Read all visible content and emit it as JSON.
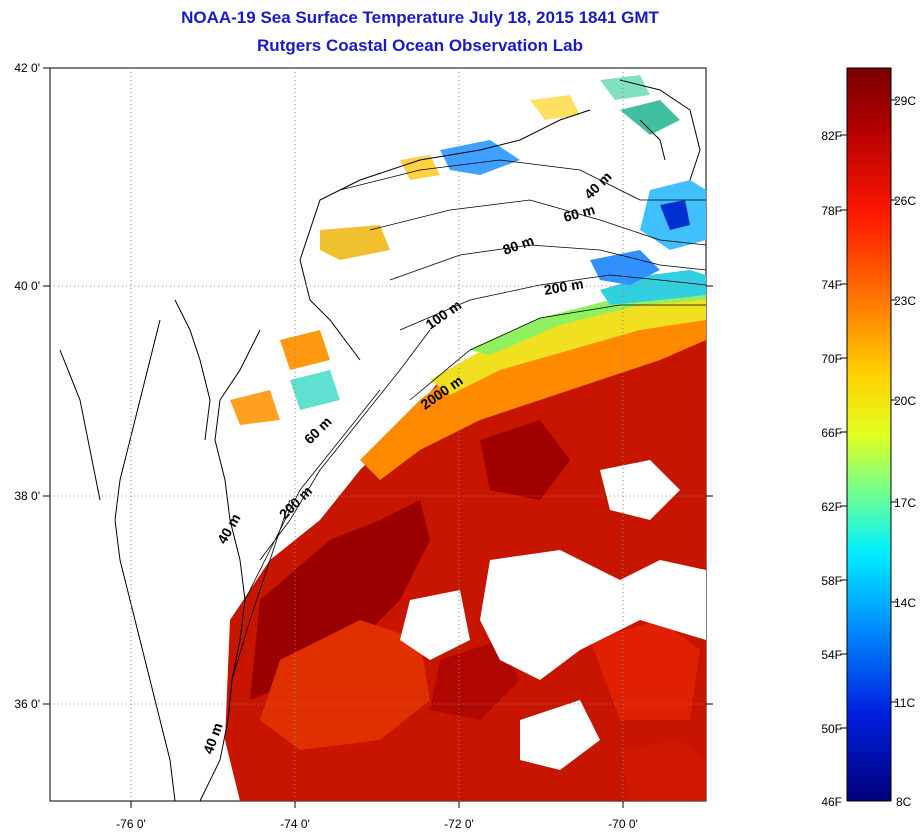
{
  "title": {
    "line1": "NOAA-19 Sea Surface Temperature July 18, 2015 1841 GMT",
    "line2": "Rutgers Coastal Ocean Observation Lab"
  },
  "map": {
    "lon_ticks": [
      "-76 0'",
      "-74 0'",
      "-72 0'",
      "-70 0'"
    ],
    "lat_ticks": [
      "42 0'",
      "40 0'",
      "38 0'",
      "36 0'"
    ],
    "depth_contours": [
      "40 m",
      "60 m",
      "80 m",
      "200 m",
      "100 m",
      "2000 m",
      "60 m",
      "200 m",
      "40 m",
      "40 m"
    ]
  },
  "colorbar": {
    "fahrenheit": [
      "82F",
      "78F",
      "74F",
      "70F",
      "66F",
      "62F",
      "58F",
      "54F",
      "50F",
      "46F"
    ],
    "celsius": [
      "29C",
      "26C",
      "23C",
      "20C",
      "17C",
      "14C",
      "11C",
      "8C"
    ],
    "colors": [
      "#7a0000",
      "#c80000",
      "#ff2a00",
      "#ff8000",
      "#ffd000",
      "#c8ff30",
      "#50ffb0",
      "#00d0ff",
      "#0070ff",
      "#0010d0",
      "#00007a"
    ]
  }
}
